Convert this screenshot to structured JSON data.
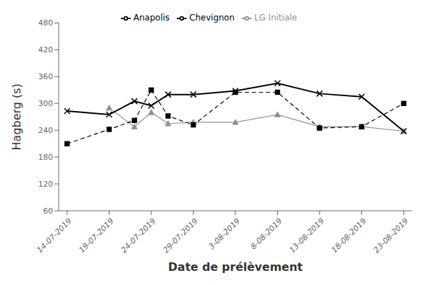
{
  "chart_data": {
    "type": "line",
    "xlabel": "Date de prélèvement",
    "ylabel": "Hagberg (s)",
    "xlim": [
      -1,
      41
    ],
    "xticks": [
      {
        "value": 0,
        "label": "14-07-2019"
      },
      {
        "value": 5,
        "label": "19-07-2019"
      },
      {
        "value": 10,
        "label": "24-07-2019"
      },
      {
        "value": 15,
        "label": "29-07-2019"
      },
      {
        "value": 20,
        "label": "3-08-2019"
      },
      {
        "value": 25,
        "label": "8-08-2019"
      },
      {
        "value": 30,
        "label": "13-08-2019"
      },
      {
        "value": 35,
        "label": "18-08-2019"
      },
      {
        "value": 40,
        "label": "23-08-2019"
      }
    ],
    "ylim": [
      60,
      480
    ],
    "yticks": [
      60,
      120,
      180,
      240,
      300,
      360,
      420,
      480
    ],
    "grid": false,
    "legend": "top",
    "series": [
      {
        "name": "LG Initiale",
        "color": "#919191",
        "marker": "triangle",
        "line_style": "solid",
        "x": [
          5,
          8,
          10,
          12,
          15,
          20,
          25,
          30,
          35,
          40
        ],
        "values": [
          290,
          248,
          280,
          255,
          258,
          258,
          275,
          248,
          248,
          238
        ]
      },
      {
        "name": "Anapolis",
        "color": "#000000",
        "marker": "square",
        "line_style": "dashed",
        "x": [
          0,
          5,
          8,
          10,
          12,
          15,
          20,
          25,
          30,
          35,
          40
        ],
        "values": [
          210,
          242,
          262,
          330,
          272,
          252,
          325,
          325,
          245,
          248,
          300
        ]
      },
      {
        "name": "Chevignon",
        "color": "#000000",
        "marker": "x",
        "line_style": "solid",
        "x": [
          0,
          5,
          8,
          10,
          12,
          15,
          20,
          25,
          30,
          35,
          40
        ],
        "values": [
          283,
          275,
          305,
          295,
          320,
          320,
          328,
          345,
          322,
          315,
          238
        ]
      }
    ]
  }
}
